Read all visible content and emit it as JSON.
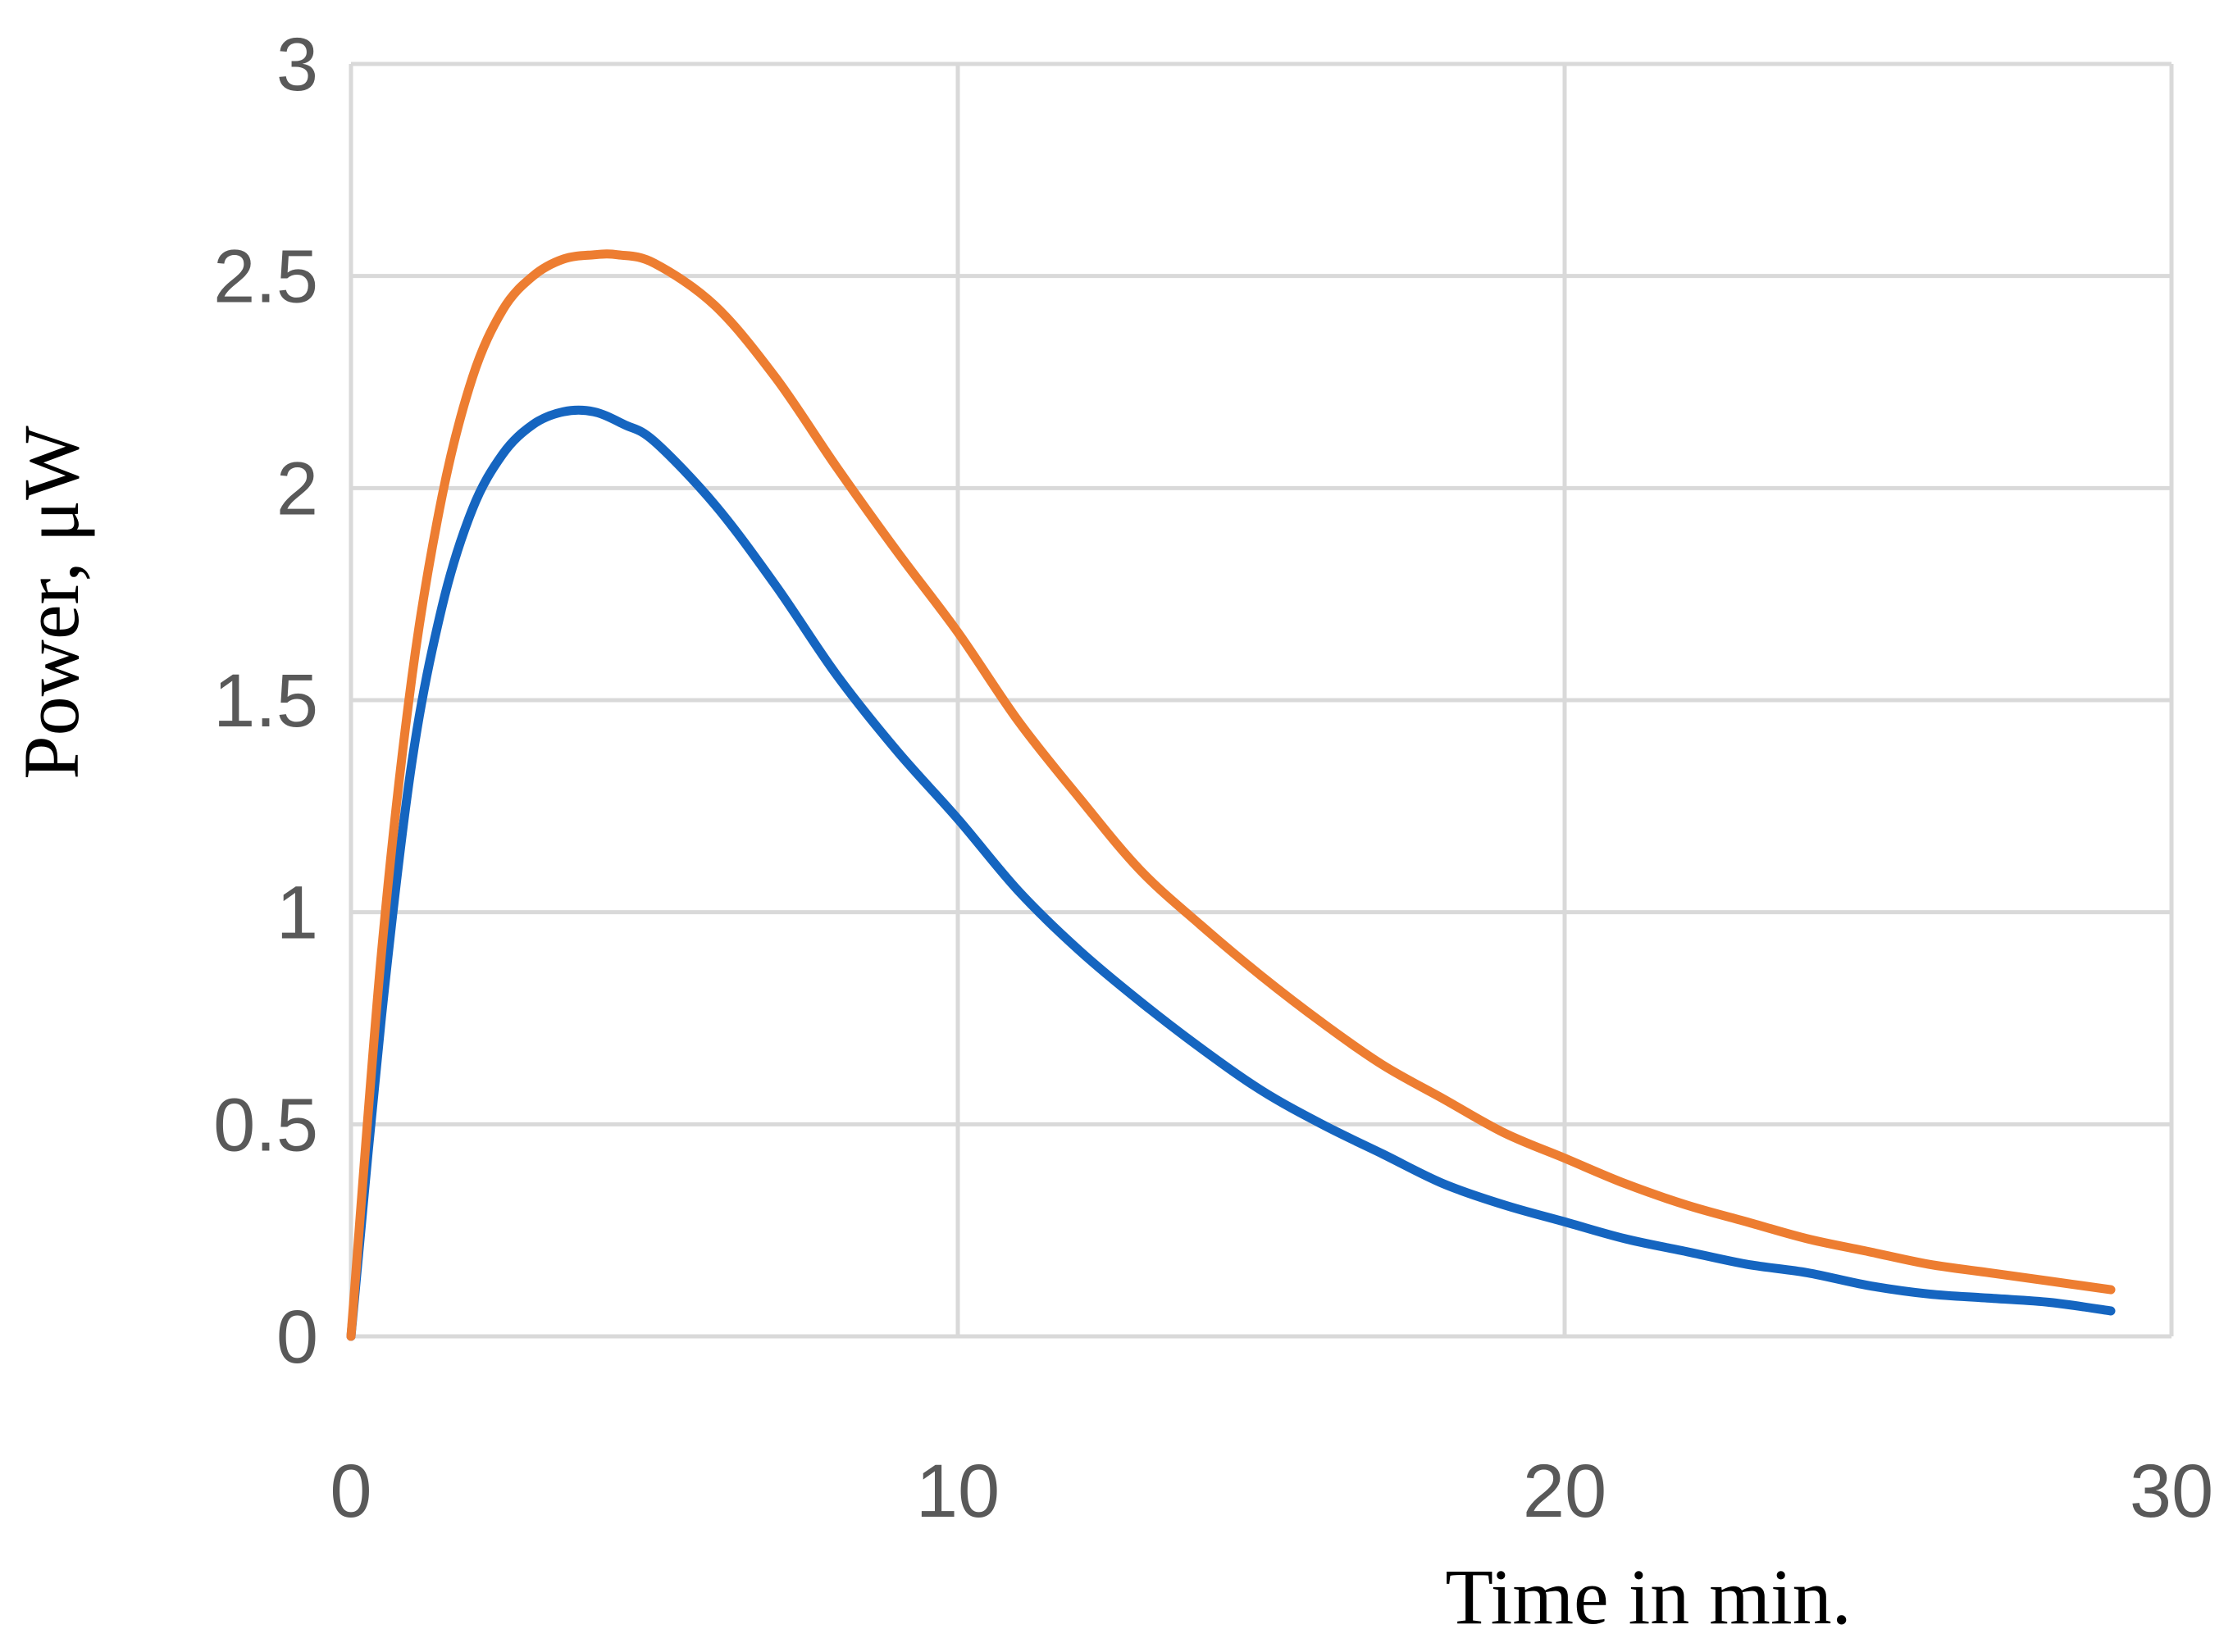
{
  "chart_data": {
    "type": "line",
    "title": "",
    "xlabel": "Time in min.",
    "ylabel": "Power, μW",
    "xlim": [
      0,
      30
    ],
    "ylim": [
      0,
      3
    ],
    "x_ticks": [
      0,
      10,
      20,
      30
    ],
    "x_tick_labels": [
      "0",
      "10",
      "20",
      "30"
    ],
    "y_ticks": [
      0,
      0.5,
      1,
      1.5,
      2,
      2.5,
      3
    ],
    "y_tick_labels": [
      "0",
      "0.5",
      "1",
      "1.5",
      "2",
      "2.5",
      "3"
    ],
    "grid": true,
    "legend": "none",
    "series": [
      {
        "color": "#ED7D31",
        "x": [
          0,
          0.5,
          1,
          1.5,
          2,
          2.5,
          3,
          3.5,
          4,
          4.4,
          5,
          6,
          7,
          8,
          9,
          10,
          11,
          12,
          13,
          14,
          15,
          16,
          17,
          18,
          19,
          20,
          21,
          22,
          23,
          24,
          25,
          26,
          27,
          28,
          29
        ],
        "y": [
          0,
          0.9,
          1.55,
          1.98,
          2.26,
          2.42,
          2.5,
          2.54,
          2.55,
          2.55,
          2.53,
          2.43,
          2.26,
          2.05,
          1.85,
          1.66,
          1.45,
          1.27,
          1.1,
          0.97,
          0.85,
          0.74,
          0.64,
          0.56,
          0.48,
          0.42,
          0.36,
          0.31,
          0.27,
          0.23,
          0.2,
          0.17,
          0.15,
          0.13,
          0.11
        ]
      },
      {
        "color": "#1565C0",
        "x": [
          0,
          0.5,
          1,
          1.5,
          2,
          2.5,
          3,
          3.5,
          4,
          4.5,
          5,
          6,
          7,
          8,
          9,
          10,
          11,
          12,
          13,
          14,
          15,
          16,
          17,
          18,
          19,
          20,
          21,
          22,
          23,
          24,
          25,
          26,
          27,
          28,
          29
        ],
        "y": [
          0,
          0.75,
          1.35,
          1.72,
          1.95,
          2.08,
          2.15,
          2.18,
          2.18,
          2.15,
          2.11,
          1.96,
          1.77,
          1.56,
          1.38,
          1.22,
          1.05,
          0.91,
          0.79,
          0.68,
          0.58,
          0.5,
          0.43,
          0.36,
          0.31,
          0.27,
          0.23,
          0.2,
          0.17,
          0.15,
          0.12,
          0.1,
          0.09,
          0.08,
          0.06
        ]
      }
    ]
  }
}
